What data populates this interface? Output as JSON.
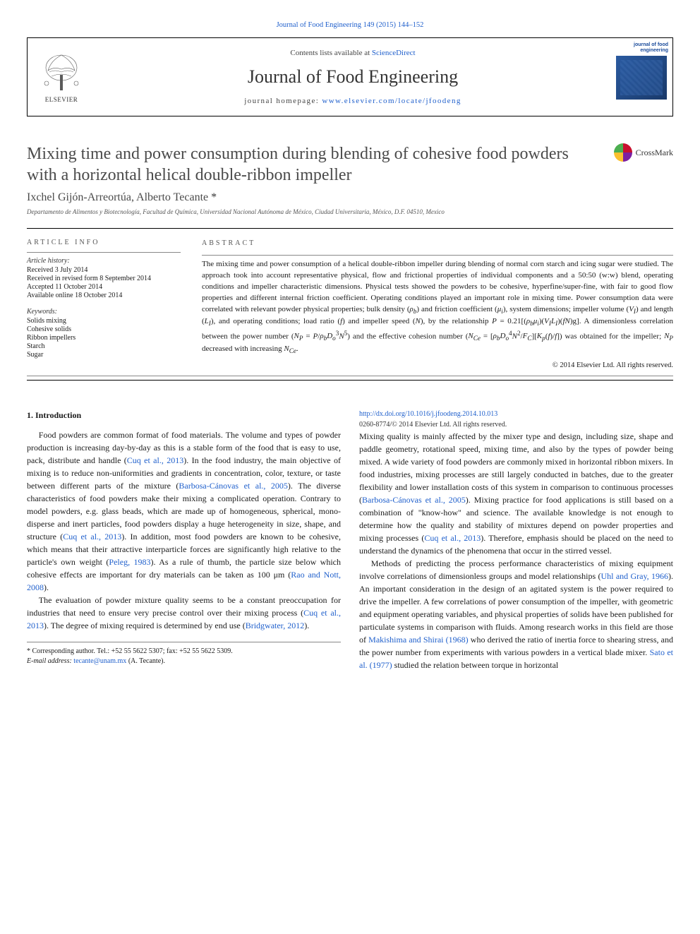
{
  "citation": "Journal of Food Engineering 149 (2015) 144–152",
  "masthead": {
    "contents_prefix": "Contents lists available at ",
    "contents_link_text": "ScienceDirect",
    "journal_title": "Journal of Food Engineering",
    "homepage_prefix": "journal homepage: ",
    "homepage_url_text": "www.elsevier.com/locate/jfoodeng",
    "publisher_name": "ELSEVIER",
    "cover_label": "journal of food engineering"
  },
  "article": {
    "title": "Mixing time and power consumption during blending of cohesive food powders with a horizontal helical double-ribbon impeller",
    "authors": "Ixchel Gijón-Arreortúa, Alberto Tecante",
    "corr_mark": "*",
    "affiliation": "Departamento de Alimentos y Biotecnología, Facultad de Química, Universidad Nacional Autónoma de México, Ciudad Universitaria, México, D.F. 04510, Mexico"
  },
  "crossmark_label": "CrossMark",
  "info": {
    "info_head": "article info",
    "abstract_head": "abstract",
    "history_label": "Article history:",
    "history": [
      "Received 3 July 2014",
      "Received in revised form 8 September 2014",
      "Accepted 11 October 2014",
      "Available online 18 October 2014"
    ],
    "keywords_label": "Keywords:",
    "keywords": [
      "Solids mixing",
      "Cohesive solids",
      "Ribbon impellers",
      "Starch",
      "Sugar"
    ],
    "abstract_html": "The mixing time and power consumption of a helical double-ribbon impeller during blending of normal corn starch and icing sugar were studied. The approach took into account representative physical, flow and frictional properties of individual components and a 50:50 (w:w) blend, operating conditions and impeller characteristic dimensions. Physical tests showed the powders to be cohesive, hyperfine/super-fine, with fair to good flow properties and different internal friction coefficient. Operating conditions played an important role in mixing time. Power consumption data were correlated with relevant powder physical properties; bulk density (<i>ρ<sub>b</sub></i>) and friction coefficient (<i>μ<sub>i</sub></i>), system dimensions; impeller volume (<i>V<sub>I</sub></i>) and length (<i>L<sub>I</sub></i>), and operating conditions; load ratio (<i>f</i>) and impeller speed (<i>N</i>), by the relationship <i>P</i> = 0.21[(<i>ρ<sub>b</sub>μ<sub>i</sub></i>)(<i>V<sub>I</sub>L<sub>I</sub></i>)(<i>fN</i>)g]. A dimensionless correlation between the power number (<i>N<sub>P</sub></i> = <i>P</i>/<i>ρ<sub>b</sub>D<sub>o</sub></i><sup>3</sup><i>N</i><sup>5</sup>) and the effective cohesion number (<i>N<sub>Ce</sub></i> = [<i>ρ<sub>b</sub>D<sub>o</sub></i><sup>4</sup><i>N</i><sup>2</sup>/<i>F<sub>C</sub></i>][<i>K<sub>p</sub></i>(<i>f</i>)/<i>f</i>]) was obtained for the impeller; <i>N<sub>P</sub></i> decreased with increasing <i>N<sub>Ce</sub></i>.",
    "copyright": "© 2014 Elsevier Ltd. All rights reserved."
  },
  "body": {
    "heading1": "1. Introduction",
    "p1": "Food powders are common format of food materials. The volume and types of powder production is increasing day-by-day as this is a stable form of the food that is easy to use, pack, distribute and handle (<span class=\"ref\">Cuq et al., 2013</span>). In the food industry, the main objective of mixing is to reduce non-uniformities and gradients in concentration, color, texture, or taste between different parts of the mixture (<span class=\"ref\">Barbosa-Cánovas et al., 2005</span>). The diverse characteristics of food powders make their mixing a complicated operation. Contrary to model powders, e.g. glass beads, which are made up of homogeneous, spherical, mono-disperse and inert particles, food powders display a huge heterogeneity in size, shape, and structure (<span class=\"ref\">Cuq et al., 2013</span>). In addition, most food powders are known to be cohesive, which means that their attractive interparticle forces are significantly high relative to the particle's own weight (<span class=\"ref\">Peleg, 1983</span>). As a rule of thumb, the particle size below which cohesive effects are important for dry materials can be taken as 100 μm (<span class=\"ref\">Rao and Nott, 2008</span>).",
    "p2": "The evaluation of powder mixture quality seems to be a constant preoccupation for industries that need to ensure very precise control over their mixing process (<span class=\"ref\">Cuq et al., 2013</span>). The degree of mixing required is determined by end use (<span class=\"ref\">Bridgwater, 2012</span>).",
    "p3": "Mixing quality is mainly affected by the mixer type and design, including size, shape and paddle geometry, rotational speed, mixing time, and also by the types of powder being mixed. A wide variety of food powders are commonly mixed in horizontal ribbon mixers. In food industries, mixing processes are still largely conducted in batches, due to the greater flexibility and lower installation costs of this system in comparison to continuous processes (<span class=\"ref\">Barbosa-Cánovas et al., 2005</span>). Mixing practice for food applications is still based on a combination of \"know-how\" and science. The available knowledge is not enough to determine how the quality and stability of mixtures depend on powder properties and mixing processes (<span class=\"ref\">Cuq et al., 2013</span>). Therefore, emphasis should be placed on the need to understand the dynamics of the phenomena that occur in the stirred vessel.",
    "p4": "Methods of predicting the process performance characteristics of mixing equipment involve correlations of dimensionless groups and model relationships (<span class=\"ref\">Uhl and Gray, 1966</span>). An important consideration in the design of an agitated system is the power required to drive the impeller. A few correlations of power consumption of the impeller, with geometric and equipment operating variables, and physical properties of solids have been published for particulate systems in comparison with fluids. Among research works in this field are those of <span class=\"ref\">Makishima and Shirai (1968)</span> who derived the ratio of inertia force to shearing stress, and the power number from experiments with various powders in a vertical blade mixer. <span class=\"ref\">Sato et al. (1977)</span> studied the relation between torque in horizontal"
  },
  "footnote": {
    "corr": "* Corresponding author. Tel.: +52 55 5622 5307; fax: +52 55 5622 5309.",
    "email_label": "E-mail address: ",
    "email": "tecante@unam.mx",
    "email_paren": " (A. Tecante)."
  },
  "doi": {
    "url_text": "http://dx.doi.org/10.1016/j.jfoodeng.2014.10.013",
    "issn_line": "0260-8774/© 2014 Elsevier Ltd. All rights reserved."
  },
  "colors": {
    "link": "#2060cc",
    "text": "#1a1a1a",
    "muted": "#555555"
  }
}
